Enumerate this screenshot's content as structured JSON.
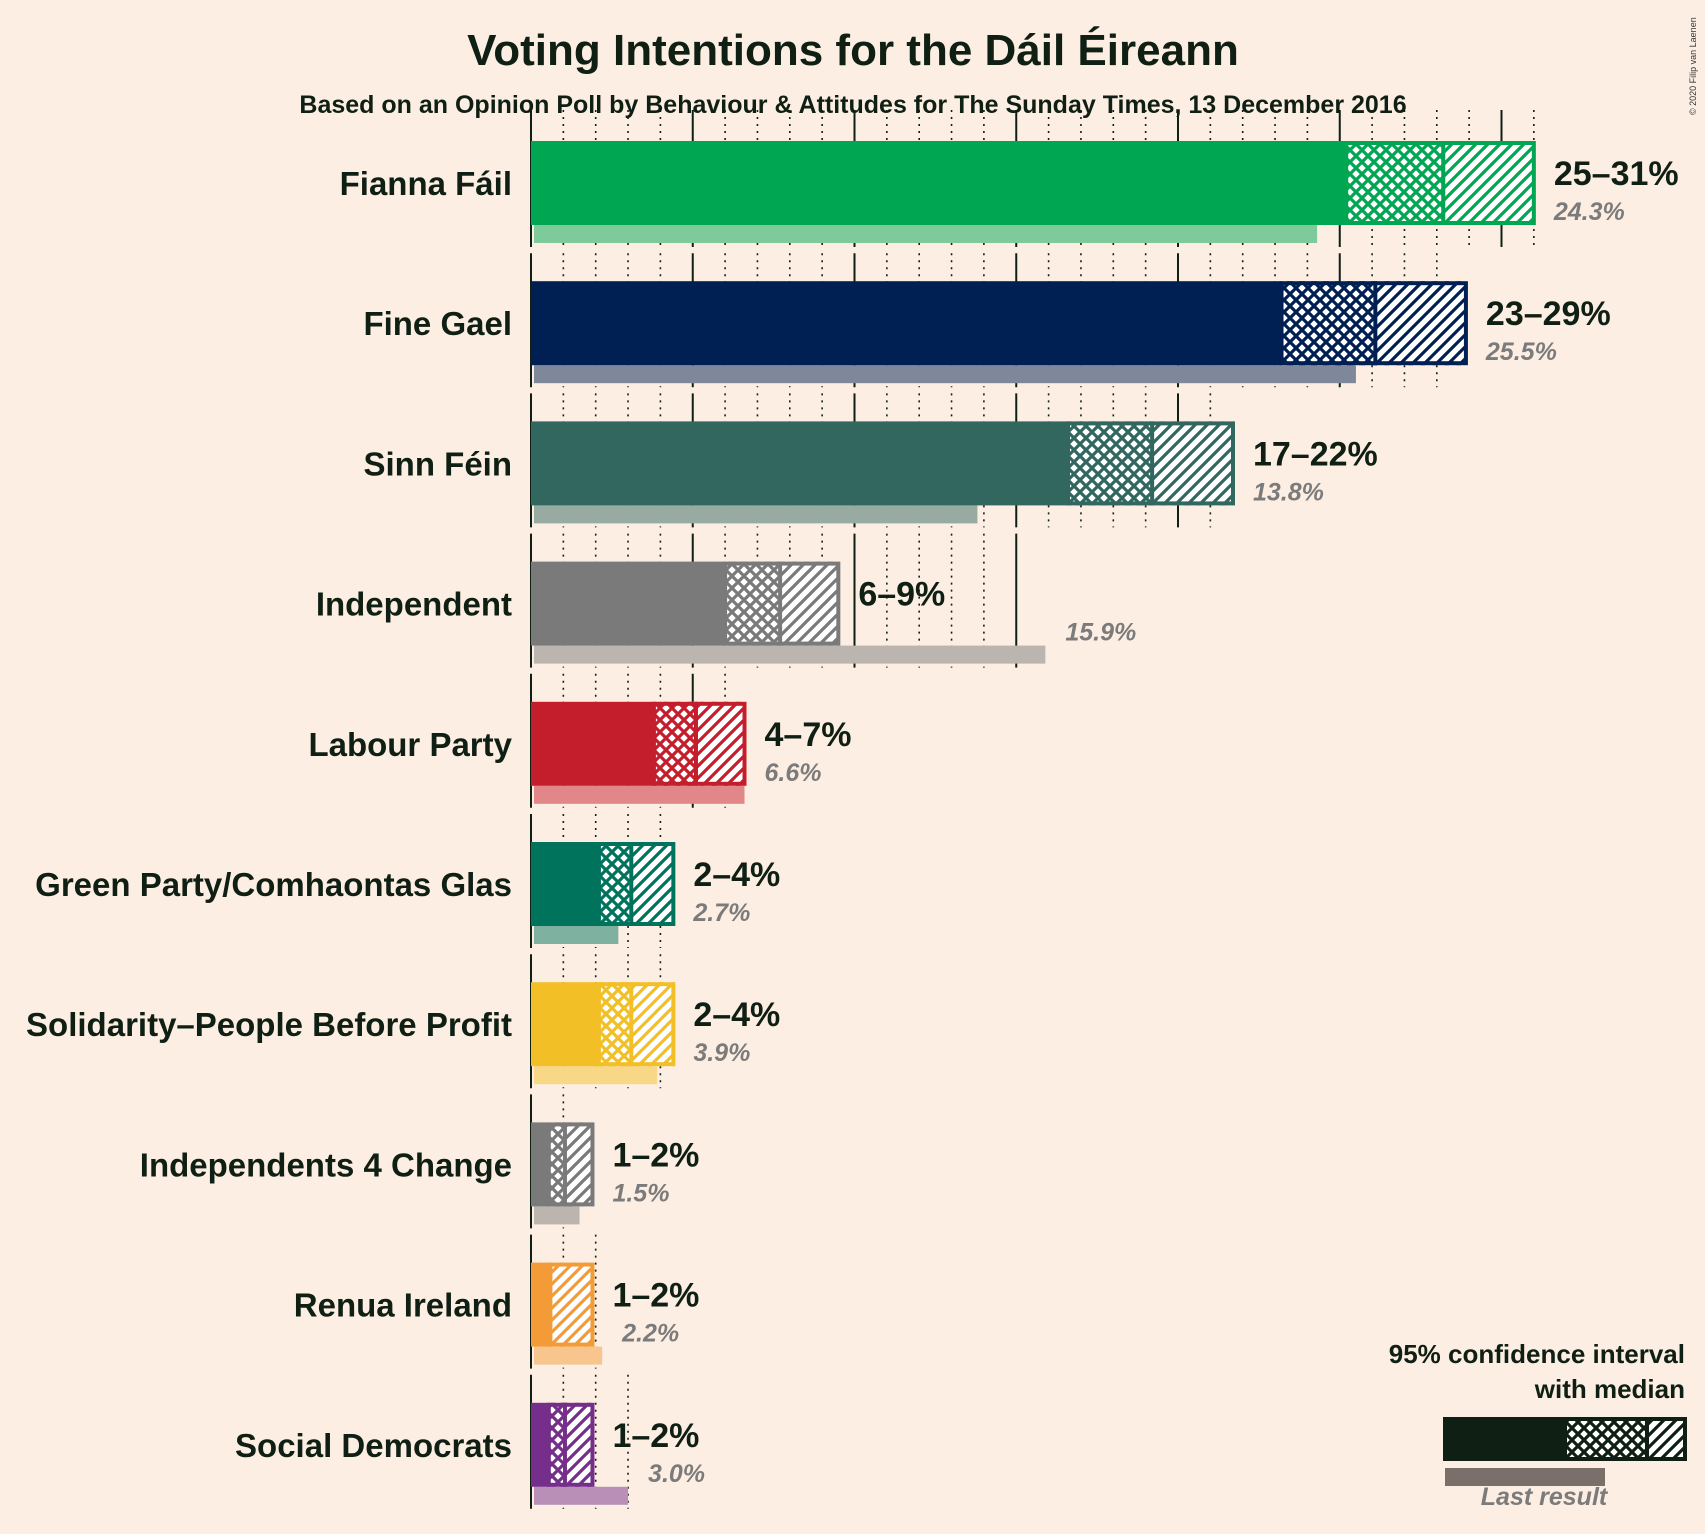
{
  "title": "Voting Intentions for the Dáil Éireann",
  "subtitle": "Based on an Opinion Poll by Behaviour & Attitudes for The Sunday Times, 13 December 2016",
  "copyright": "© 2020 Filip van Laenen",
  "legend": {
    "line1": "95% confidence interval",
    "line2": "with median",
    "last_result": "Last result"
  },
  "chart_data": {
    "type": "bar",
    "orientation": "horizontal",
    "x_range": [
      0,
      31
    ],
    "categories": [
      "Fianna Fáil",
      "Fine Gael",
      "Sinn Féin",
      "Independent",
      "Labour Party",
      "Green Party/Comhaontas Glas",
      "Solidarity–People Before Profit",
      "Independents 4 Change",
      "Renua Ireland",
      "Social Democrats"
    ],
    "series": [
      {
        "name": "95% confidence interval with median",
        "items": [
          {
            "party": "Fianna Fáil",
            "color": "#00a651",
            "ci_low": 25.2,
            "median": 28.2,
            "ci_high": 31.0,
            "label": "25–31%"
          },
          {
            "party": "Fine Gael",
            "color": "#001f52",
            "ci_low": 23.2,
            "median": 26.1,
            "ci_high": 28.9,
            "label": "23–29%"
          },
          {
            "party": "Sinn Féin",
            "color": "#326760",
            "ci_low": 16.6,
            "median": 19.2,
            "ci_high": 21.7,
            "label": "17–22%"
          },
          {
            "party": "Independent",
            "color": "#7a7a7a",
            "ci_low": 6.0,
            "median": 7.7,
            "ci_high": 9.5,
            "label": "6–9%"
          },
          {
            "party": "Labour Party",
            "color": "#c41e2d",
            "ci_low": 3.8,
            "median": 5.1,
            "ci_high": 6.6,
            "label": "4–7%"
          },
          {
            "party": "Green Party/Comhaontas Glas",
            "color": "#00735c",
            "ci_low": 2.1,
            "median": 3.1,
            "ci_high": 4.4,
            "label": "2–4%"
          },
          {
            "party": "Solidarity–People Before Profit",
            "color": "#f2bf27",
            "ci_low": 2.1,
            "median": 3.1,
            "ci_high": 4.4,
            "label": "2–4%"
          },
          {
            "party": "Independents 4 Change",
            "color": "#7a7a7a",
            "ci_low": 0.55,
            "median": 1.05,
            "ci_high": 1.9,
            "label": "1–2%"
          },
          {
            "party": "Renua Ireland",
            "color": "#f39c37",
            "ci_low": 0.55,
            "median": 0.6,
            "ci_high": 1.9,
            "label": "1–2%"
          },
          {
            "party": "Social Democrats",
            "color": "#752f8b",
            "ci_low": 0.55,
            "median": 1.05,
            "ci_high": 1.9,
            "label": "1–2%"
          }
        ]
      },
      {
        "name": "Last result",
        "values": [
          24.3,
          25.5,
          13.8,
          15.9,
          6.6,
          2.7,
          3.9,
          1.5,
          2.2,
          3.0
        ],
        "labels": [
          "24.3%",
          "25.5%",
          "13.8%",
          "15.9%",
          "6.6%",
          "2.7%",
          "3.9%",
          "1.5%",
          "2.2%",
          "3.0%"
        ]
      }
    ]
  }
}
